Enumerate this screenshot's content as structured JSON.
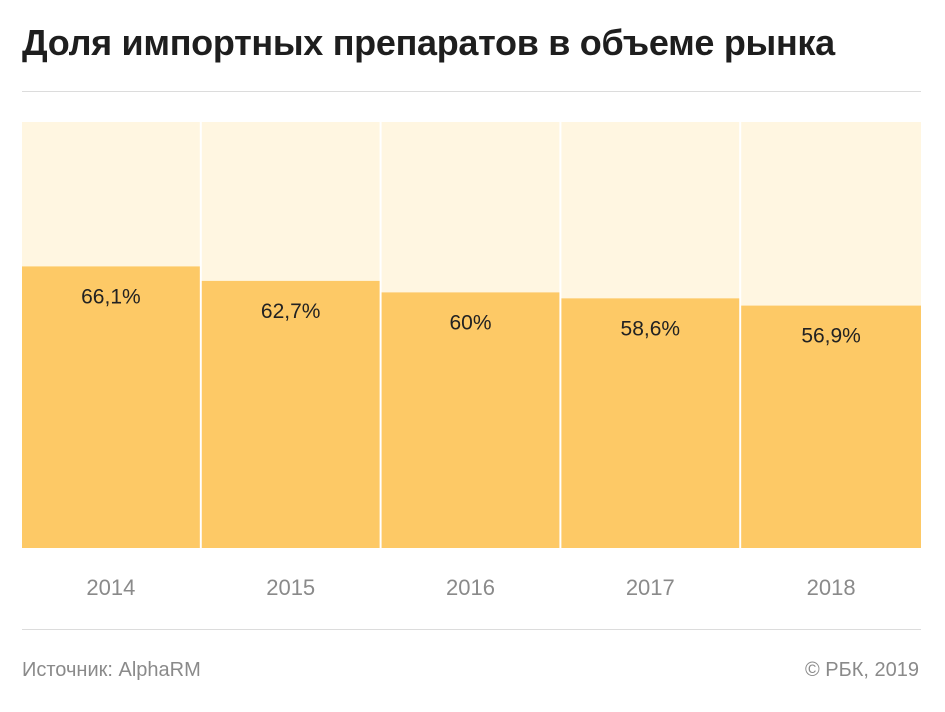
{
  "header": {
    "title": "Доля импортных препаратов в объеме рынка"
  },
  "footer": {
    "source": "Источник: AlphaRM",
    "copyright": "© РБК, 2019"
  },
  "colors": {
    "bar": "#FDC966",
    "background": "#FFF6E1",
    "axis_label": "#8a8a8a",
    "value_label": "#222222"
  },
  "chart_data": {
    "type": "bar",
    "title": "Доля импортных препаратов в объеме рынка",
    "xlabel": "",
    "ylabel": "",
    "unit": "%",
    "ylim": [
      0,
      100
    ],
    "grid": false,
    "categories": [
      "2014",
      "2015",
      "2016",
      "2017",
      "2018"
    ],
    "values": [
      66.1,
      62.7,
      60,
      58.6,
      56.9
    ],
    "data_labels": [
      "66,1%",
      "62,7%",
      "60%",
      "58,6%",
      "56,9%"
    ]
  }
}
